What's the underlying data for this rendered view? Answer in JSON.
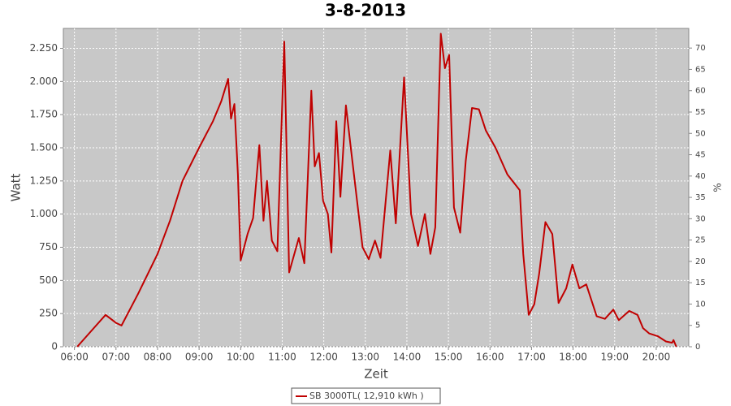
{
  "chart_data": {
    "type": "line",
    "title": "3-8-2013",
    "x_label": "Zeit",
    "y_label": "Watt",
    "y2_label": "%",
    "x": [
      "06:04",
      "06:45",
      "07:00",
      "07:08",
      "07:32",
      "08:00",
      "08:18",
      "08:36",
      "09:00",
      "09:20",
      "09:32",
      "09:42",
      "09:46",
      "09:51",
      "09:56",
      "10:00",
      "10:10",
      "10:18",
      "10:27",
      "10:33",
      "10:38",
      "10:45",
      "10:53",
      "11:03",
      "11:10",
      "11:24",
      "11:32",
      "11:42",
      "11:47",
      "11:53",
      "11:59",
      "12:06",
      "12:11",
      "12:18",
      "12:24",
      "12:32",
      "12:39",
      "12:48",
      "12:56",
      "13:05",
      "13:14",
      "13:22",
      "13:36",
      "13:44",
      "13:56",
      "14:06",
      "14:16",
      "14:26",
      "14:34",
      "14:41",
      "14:49",
      "14:55",
      "15:01",
      "15:08",
      "15:17",
      "15:25",
      "15:34",
      "15:44",
      "15:54",
      "16:08",
      "16:25",
      "16:43",
      "16:48",
      "16:56",
      "17:04",
      "17:11",
      "17:20",
      "17:30",
      "17:39",
      "17:50",
      "17:59",
      "18:09",
      "18:19",
      "18:34",
      "18:46",
      "18:58",
      "19:06",
      "19:21",
      "19:33",
      "19:41",
      "19:50",
      "20:02",
      "20:14",
      "20:23",
      "20:25",
      "20:29"
    ],
    "series": [
      {
        "name": "SB 3000TL( 12,910 kWh )",
        "color": "#c00000",
        "values": [
          0,
          240,
          180,
          160,
          400,
          700,
          950,
          1250,
          1500,
          1700,
          1850,
          2020,
          1720,
          1830,
          1300,
          650,
          850,
          970,
          1520,
          950,
          1250,
          800,
          720,
          2300,
          560,
          820,
          630,
          1930,
          1360,
          1460,
          1100,
          1000,
          710,
          1700,
          1130,
          1820,
          1500,
          1100,
          750,
          660,
          800,
          670,
          1480,
          930,
          2030,
          1000,
          760,
          1000,
          700,
          900,
          2360,
          2100,
          2200,
          1050,
          860,
          1400,
          1800,
          1790,
          1630,
          1500,
          1300,
          1180,
          700,
          240,
          320,
          550,
          940,
          850,
          330,
          440,
          620,
          440,
          470,
          230,
          210,
          280,
          200,
          270,
          240,
          140,
          100,
          80,
          40,
          30,
          50,
          0
        ]
      }
    ],
    "xlim": [
      "05:44",
      "20:47"
    ],
    "xticks": [
      "06:00",
      "07:00",
      "08:00",
      "09:00",
      "10:00",
      "11:00",
      "12:00",
      "13:00",
      "14:00",
      "15:00",
      "16:00",
      "17:00",
      "18:00",
      "19:00",
      "20:00"
    ],
    "ylim": [
      0,
      2400
    ],
    "yticks": [
      0,
      250,
      500,
      750,
      {
        "value": 1000,
        "label": "1.000"
      },
      {
        "value": 1250,
        "label": "1.250"
      },
      {
        "value": 1500,
        "label": "1.500"
      },
      {
        "value": 1750,
        "label": "1.750"
      },
      {
        "value": 2000,
        "label": "2.000"
      },
      {
        "value": 2250,
        "label": "2.250"
      }
    ],
    "y2lim": [
      0,
      74.6
    ],
    "y2ticks": [
      0,
      5,
      10,
      15,
      20,
      25,
      30,
      35,
      40,
      45,
      50,
      55,
      60,
      65,
      70
    ],
    "grid": true
  }
}
